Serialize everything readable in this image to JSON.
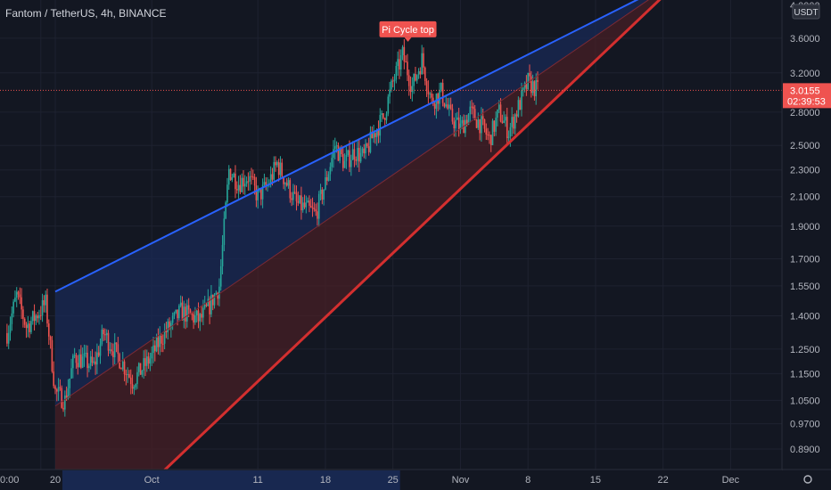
{
  "header": {
    "symbol_title": "Fantom / TetherUS, 4h, BINANCE"
  },
  "colors": {
    "background": "#131722",
    "up": "#26a69a",
    "down": "#ef5350",
    "upper_line": "#2962ff",
    "lower_line": "#d32f2f",
    "channel_fill": "#1a2a55",
    "lower_fill": "#4a1f25",
    "price_label": "#ef5350",
    "annotation": "#ef5350"
  },
  "price_axis": {
    "unit": "USDT",
    "current_price": "3.0155",
    "countdown": "02:39:53",
    "top_partial": "4.0000"
  },
  "annotation": {
    "label": "Pi Cycle top"
  },
  "chart_data": {
    "type": "candlestick",
    "scale": "log",
    "ylim": [
      0.83,
      4.1
    ],
    "y_ticks": [
      "0.8900",
      "0.9700",
      "1.0500",
      "1.1500",
      "1.2500",
      "1.4000",
      "1.5500",
      "1.7000",
      "1.9000",
      "2.1000",
      "2.3000",
      "2.5000",
      "2.8000",
      "3.2000",
      "3.6000"
    ],
    "y_tick_values": [
      0.89,
      0.97,
      1.05,
      1.15,
      1.25,
      1.4,
      1.55,
      1.7,
      1.9,
      2.1,
      2.3,
      2.5,
      2.8,
      3.2,
      3.6
    ],
    "x_ticks": [
      "0:00",
      "20",
      "Oct",
      "11",
      "18",
      "25",
      "Nov",
      "8",
      "15",
      "22",
      "Dec"
    ],
    "x_tick_days": [
      -1.5,
      0,
      10,
      21,
      28,
      35,
      42,
      49,
      56,
      63,
      70
    ],
    "x_tick_dates": [
      "2021-09-18",
      "2021-09-20",
      "2021-10-01",
      "2021-10-11",
      "2021-10-18",
      "2021-10-25",
      "2021-11-01",
      "2021-11-08",
      "2021-11-15",
      "2021-11-22",
      "2021-12-01"
    ],
    "price_path": [
      [
        "2021-09-15",
        1.32
      ],
      [
        "2021-09-16",
        1.5
      ],
      [
        "2021-09-17",
        1.35
      ],
      [
        "2021-09-18",
        1.4
      ],
      [
        "2021-09-19",
        1.46
      ],
      [
        "2021-09-20",
        1.08
      ],
      [
        "2021-09-21",
        1.05
      ],
      [
        "2021-09-22",
        1.22
      ],
      [
        "2021-09-24",
        1.18
      ],
      [
        "2021-09-25",
        1.32
      ],
      [
        "2021-09-27",
        1.19
      ],
      [
        "2021-09-28",
        1.12
      ],
      [
        "2021-09-30",
        1.22
      ],
      [
        "2021-10-01",
        1.3
      ],
      [
        "2021-10-03",
        1.42
      ],
      [
        "2021-10-05",
        1.38
      ],
      [
        "2021-10-06",
        1.45
      ],
      [
        "2021-10-07",
        1.55
      ],
      [
        "2021-10-08",
        2.3
      ],
      [
        "2021-10-09",
        2.2
      ],
      [
        "2021-10-10",
        2.25
      ],
      [
        "2021-10-11",
        2.1
      ],
      [
        "2021-10-12",
        2.18
      ],
      [
        "2021-10-13",
        2.35
      ],
      [
        "2021-10-15",
        2.05
      ],
      [
        "2021-10-17",
        1.98
      ],
      [
        "2021-10-18",
        2.2
      ],
      [
        "2021-10-19",
        2.5
      ],
      [
        "2021-10-20",
        2.35
      ],
      [
        "2021-10-21",
        2.45
      ],
      [
        "2021-10-22",
        2.4
      ],
      [
        "2021-10-23",
        2.6
      ],
      [
        "2021-10-24",
        2.75
      ],
      [
        "2021-10-25",
        3.1
      ],
      [
        "2021-10-26",
        3.4
      ],
      [
        "2021-10-27",
        3.05
      ],
      [
        "2021-10-28",
        3.35
      ],
      [
        "2021-10-29",
        2.9
      ],
      [
        "2021-10-30",
        3.0
      ],
      [
        "2021-10-31",
        2.75
      ],
      [
        "2021-11-01",
        2.65
      ],
      [
        "2021-11-02",
        2.8
      ],
      [
        "2021-11-03",
        2.7
      ],
      [
        "2021-11-04",
        2.55
      ],
      [
        "2021-11-05",
        2.8
      ],
      [
        "2021-11-06",
        2.62
      ],
      [
        "2021-11-07",
        2.85
      ],
      [
        "2021-11-08",
        3.1
      ],
      [
        "2021-11-09",
        3.0155
      ]
    ],
    "upper_trendline": [
      [
        "2021-09-20",
        1.52
      ],
      [
        "2021-11-20",
        4.15
      ]
    ],
    "mid_trendline": [
      [
        "2021-09-20",
        1.03
      ],
      [
        "2021-11-21",
        4.15
      ]
    ],
    "lower_trendline": [
      [
        "2021-10-01",
        0.82
      ],
      [
        "2021-11-22",
        4.15
      ]
    ],
    "current_price": 3.0155,
    "annotation_price": 3.42,
    "annotation_date": "2021-10-26"
  }
}
